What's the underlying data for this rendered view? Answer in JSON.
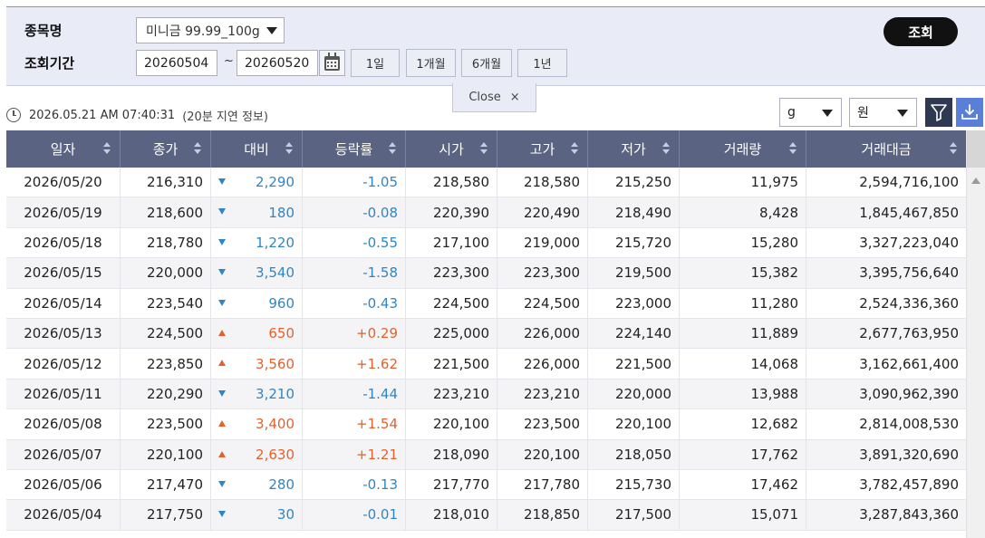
{
  "search": {
    "item_label": "종목명",
    "item_value": "미니금 99.99_100g",
    "period_label": "조회기간",
    "start_date": "20260504",
    "tilde": "~",
    "end_date": "20260520",
    "period_buttons": [
      "1일",
      "1개월",
      "6개월",
      "1년"
    ],
    "search_button": "조회",
    "close_label": "Close",
    "close_x": "×"
  },
  "info": {
    "timestamp": "2026.05.21 AM 07:40:31",
    "delay_note": "(20분 지연 정보)"
  },
  "units": {
    "weight": "g",
    "currency": "원"
  },
  "colors": {
    "up": "#e2622d",
    "down": "#2f86c4",
    "header_bg": "#5a6382"
  },
  "table": {
    "columns": [
      "일자",
      "종가",
      "대비",
      "등락률",
      "시가",
      "고가",
      "저가",
      "거래량",
      "거래대금"
    ],
    "rows": [
      {
        "date": "2026/05/20",
        "close": "216,310",
        "dir": "down",
        "change": "2,290",
        "rate": "-1.05",
        "open": "218,580",
        "high": "218,580",
        "low": "215,250",
        "volume": "11,975",
        "amount": "2,594,716,100"
      },
      {
        "date": "2026/05/19",
        "close": "218,600",
        "dir": "down",
        "change": "180",
        "rate": "-0.08",
        "open": "220,390",
        "high": "220,490",
        "low": "218,490",
        "volume": "8,428",
        "amount": "1,845,467,850"
      },
      {
        "date": "2026/05/18",
        "close": "218,780",
        "dir": "down",
        "change": "1,220",
        "rate": "-0.55",
        "open": "217,100",
        "high": "219,000",
        "low": "215,720",
        "volume": "15,280",
        "amount": "3,327,223,040"
      },
      {
        "date": "2026/05/15",
        "close": "220,000",
        "dir": "down",
        "change": "3,540",
        "rate": "-1.58",
        "open": "223,300",
        "high": "223,300",
        "low": "219,500",
        "volume": "15,382",
        "amount": "3,395,756,640"
      },
      {
        "date": "2026/05/14",
        "close": "223,540",
        "dir": "down",
        "change": "960",
        "rate": "-0.43",
        "open": "224,500",
        "high": "224,500",
        "low": "223,000",
        "volume": "11,280",
        "amount": "2,524,336,360"
      },
      {
        "date": "2026/05/13",
        "close": "224,500",
        "dir": "up",
        "change": "650",
        "rate": "+0.29",
        "open": "225,000",
        "high": "226,000",
        "low": "224,140",
        "volume": "11,889",
        "amount": "2,677,763,950"
      },
      {
        "date": "2026/05/12",
        "close": "223,850",
        "dir": "up",
        "change": "3,560",
        "rate": "+1.62",
        "open": "221,500",
        "high": "226,000",
        "low": "221,500",
        "volume": "14,068",
        "amount": "3,162,661,400"
      },
      {
        "date": "2026/05/11",
        "close": "220,290",
        "dir": "down",
        "change": "3,210",
        "rate": "-1.44",
        "open": "223,210",
        "high": "223,210",
        "low": "220,000",
        "volume": "13,988",
        "amount": "3,090,962,390"
      },
      {
        "date": "2026/05/08",
        "close": "223,500",
        "dir": "up",
        "change": "3,400",
        "rate": "+1.54",
        "open": "220,100",
        "high": "223,500",
        "low": "220,100",
        "volume": "12,682",
        "amount": "2,814,008,530"
      },
      {
        "date": "2026/05/07",
        "close": "220,100",
        "dir": "up",
        "change": "2,630",
        "rate": "+1.21",
        "open": "218,090",
        "high": "220,100",
        "low": "218,050",
        "volume": "17,762",
        "amount": "3,891,320,690"
      },
      {
        "date": "2026/05/06",
        "close": "217,470",
        "dir": "down",
        "change": "280",
        "rate": "-0.13",
        "open": "217,770",
        "high": "217,780",
        "low": "215,730",
        "volume": "17,462",
        "amount": "3,782,457,890"
      },
      {
        "date": "2026/05/04",
        "close": "217,750",
        "dir": "down",
        "change": "30",
        "rate": "-0.01",
        "open": "218,010",
        "high": "218,850",
        "low": "217,500",
        "volume": "15,071",
        "amount": "3,287,843,360"
      }
    ]
  }
}
